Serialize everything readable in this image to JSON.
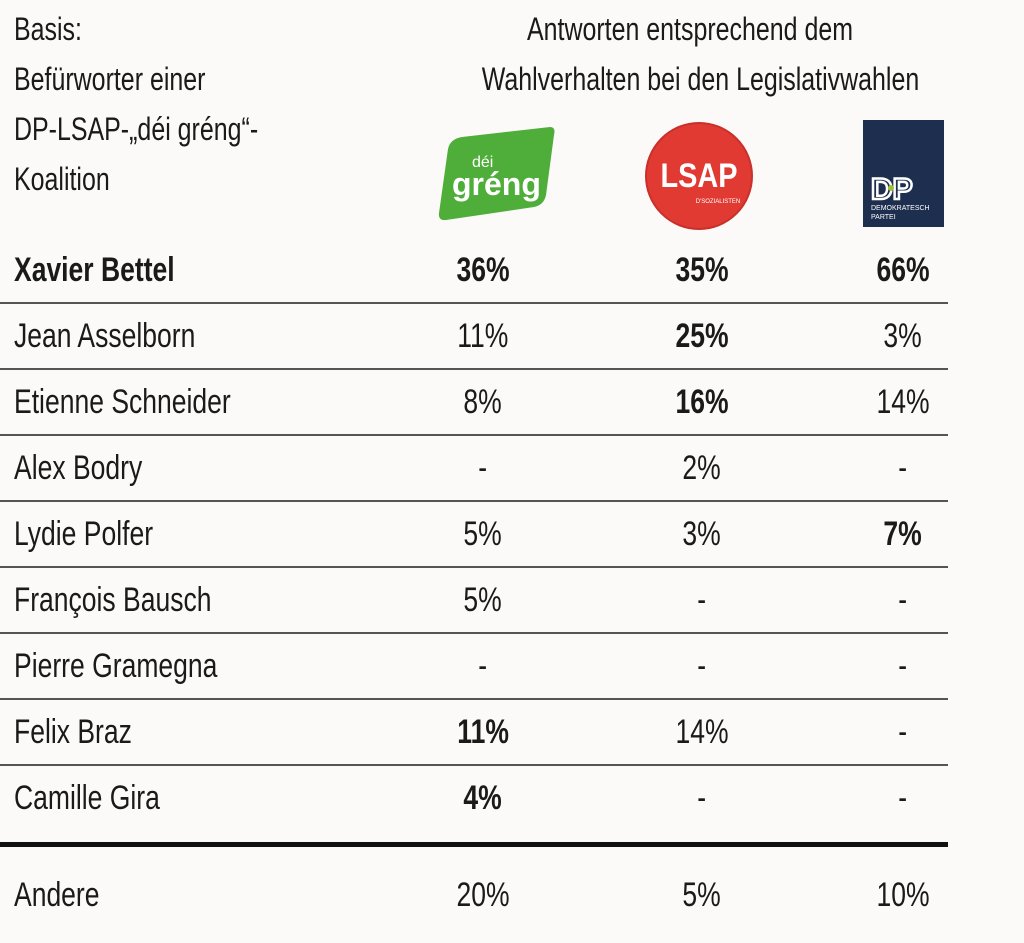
{
  "basis": {
    "lines": [
      "Basis:",
      "Befürworter einer",
      "DP-LSAP-„déi gréng“-",
      "Koalition"
    ]
  },
  "header": {
    "lines": [
      "Antworten entsprechend dem",
      "Wahlverhalten bei den Legislativwahlen"
    ]
  },
  "parties": [
    {
      "name": "déi gréng",
      "logo_text_top": "déi",
      "logo_text_main": "gréng",
      "color": "#4fae3a",
      "accent": "#e4e82a"
    },
    {
      "name": "LSAP",
      "logo_text_main": "LSAP",
      "logo_text_sub": "D'SOZIALISTEN",
      "color": "#e03a33"
    },
    {
      "name": "DP",
      "logo_text_main": "DP",
      "logo_text_sub1": "DEMOKRATESCH",
      "logo_text_sub2": "PARTEI",
      "color": "#1d2e4f"
    }
  ],
  "chart_data": {
    "type": "table",
    "title": "Antworten entsprechend dem Wahlverhalten bei den Legislativwahlen",
    "subtitle": "Basis: Befürworter einer DP-LSAP-„déi gréng“-Koalition",
    "columns": [
      "déi gréng",
      "LSAP",
      "DP"
    ],
    "rows": [
      {
        "name": "Xavier Bettel",
        "values": [
          "36%",
          "35%",
          "66%"
        ],
        "bold_name": true,
        "bold": [
          true,
          true,
          true
        ]
      },
      {
        "name": "Jean Asselborn",
        "values": [
          "11%",
          "25%",
          "3%"
        ],
        "bold_name": false,
        "bold": [
          false,
          true,
          false
        ]
      },
      {
        "name": "Etienne Schneider",
        "values": [
          "8%",
          "16%",
          "14%"
        ],
        "bold_name": false,
        "bold": [
          false,
          true,
          false
        ]
      },
      {
        "name": "Alex Bodry",
        "values": [
          "-",
          "2%",
          "-"
        ],
        "bold_name": false,
        "bold": [
          false,
          false,
          false
        ]
      },
      {
        "name": "Lydie Polfer",
        "values": [
          "5%",
          "3%",
          "7%"
        ],
        "bold_name": false,
        "bold": [
          false,
          false,
          true
        ]
      },
      {
        "name": "François Bausch",
        "values": [
          "5%",
          "-",
          "-"
        ],
        "bold_name": false,
        "bold": [
          false,
          false,
          false
        ]
      },
      {
        "name": "Pierre Gramegna",
        "values": [
          "-",
          "-",
          "-"
        ],
        "bold_name": false,
        "bold": [
          false,
          false,
          false
        ]
      },
      {
        "name": "Felix Braz",
        "values": [
          "11%",
          "14%",
          "-"
        ],
        "bold_name": false,
        "bold": [
          true,
          false,
          false
        ]
      },
      {
        "name": "Camille Gira",
        "values": [
          "4%",
          "-",
          "-"
        ],
        "bold_name": false,
        "bold": [
          true,
          false,
          false
        ]
      },
      {
        "name": "Andere",
        "values": [
          "20%",
          "5%",
          "10%"
        ],
        "bold_name": false,
        "bold": [
          false,
          false,
          false
        ]
      }
    ]
  }
}
